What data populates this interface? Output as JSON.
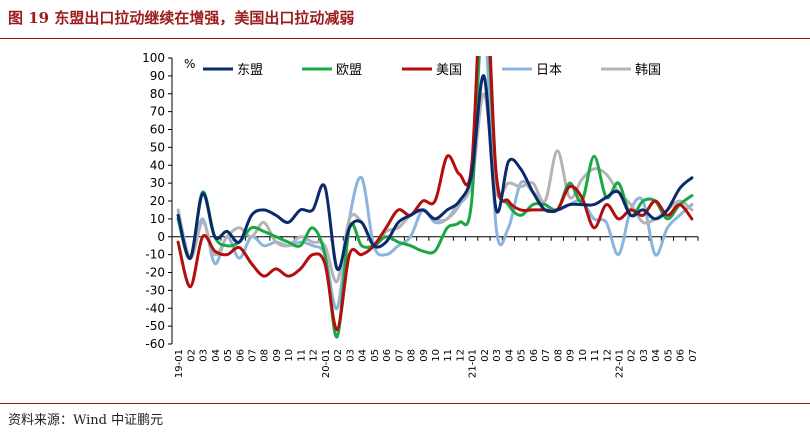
{
  "figure": {
    "title": "图 19    东盟出口拉动继续在增强，美国出口拉动减弱",
    "source": "资料来源：Wind    中证鹏元"
  },
  "chart_data": {
    "type": "line",
    "unit_label": "%",
    "title": "",
    "xlabel": "",
    "ylabel": "",
    "ylim": [
      -60,
      100
    ],
    "yticks": [
      -60,
      -50,
      -40,
      -30,
      -20,
      -10,
      0,
      10,
      20,
      30,
      40,
      50,
      60,
      70,
      80,
      90,
      100
    ],
    "grid": false,
    "legend_position": "top",
    "x": [
      "19-01",
      "02",
      "03",
      "04",
      "05",
      "06",
      "07",
      "08",
      "09",
      "10",
      "11",
      "12",
      "20-01",
      "02",
      "03",
      "04",
      "05",
      "06",
      "07",
      "08",
      "09",
      "10",
      "11",
      "12",
      "21-01",
      "02",
      "03",
      "04",
      "05",
      "06",
      "07",
      "08",
      "09",
      "10",
      "11",
      "12",
      "22-01",
      "02",
      "03",
      "04",
      "05",
      "06",
      "07"
    ],
    "series": [
      {
        "name": "东盟",
        "color": "#0b2a6b",
        "values": [
          12,
          -12,
          24,
          0,
          3,
          -3,
          12,
          15,
          12,
          8,
          15,
          15,
          28,
          -18,
          5,
          8,
          -5,
          -3,
          8,
          12,
          15,
          10,
          15,
          20,
          35,
          90,
          15,
          42,
          38,
          25,
          15,
          15,
          18,
          18,
          18,
          22,
          25,
          12,
          15,
          10,
          15,
          27,
          33
        ]
      },
      {
        "name": "欧盟",
        "color": "#1aa846",
        "values": [
          10,
          -12,
          25,
          0,
          -5,
          -3,
          5,
          3,
          0,
          -3,
          -5,
          5,
          -10,
          -56,
          5,
          -5,
          -5,
          0,
          -3,
          -5,
          -8,
          -8,
          5,
          8,
          20,
          140,
          35,
          18,
          12,
          18,
          18,
          15,
          30,
          20,
          45,
          22,
          30,
          12,
          20,
          20,
          10,
          18,
          23
        ]
      },
      {
        "name": "美国",
        "color": "#b40d0d",
        "values": [
          -3,
          -28,
          0,
          -8,
          -10,
          -6,
          -15,
          -22,
          -18,
          -22,
          -18,
          -10,
          -15,
          -52,
          -10,
          -10,
          -5,
          5,
          15,
          12,
          20,
          20,
          45,
          35,
          40,
          160,
          35,
          20,
          15,
          15,
          15,
          15,
          28,
          22,
          5,
          18,
          10,
          15,
          12,
          20,
          12,
          18,
          10
        ]
      },
      {
        "name": "日本",
        "color": "#8cb5dd",
        "values": [
          10,
          -12,
          10,
          -15,
          0,
          -12,
          0,
          -5,
          -3,
          -5,
          -3,
          -5,
          -10,
          -40,
          10,
          33,
          -5,
          -10,
          -5,
          0,
          15,
          8,
          10,
          18,
          35,
          120,
          5,
          5,
          30,
          25,
          18,
          15,
          18,
          20,
          10,
          8,
          -10,
          15,
          20,
          -10,
          5,
          12,
          18
        ]
      },
      {
        "name": "韩国",
        "color": "#b4b4b4",
        "values": [
          15,
          -12,
          8,
          -10,
          0,
          5,
          0,
          8,
          -3,
          -5,
          0,
          -3,
          -5,
          -25,
          10,
          8,
          -5,
          3,
          5,
          12,
          15,
          10,
          10,
          20,
          30,
          80,
          25,
          30,
          28,
          30,
          20,
          48,
          22,
          32,
          38,
          35,
          25,
          18,
          8,
          10,
          15,
          20,
          15
        ]
      }
    ]
  }
}
